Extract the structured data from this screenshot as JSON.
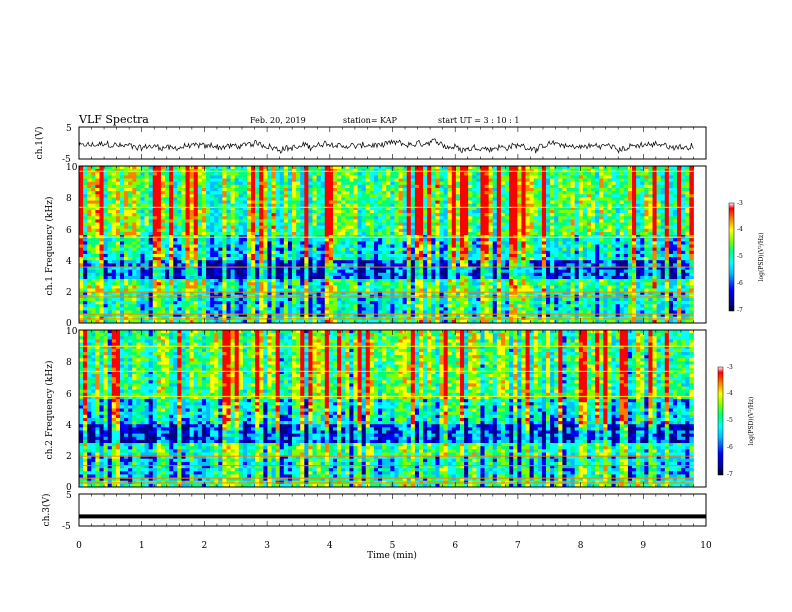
{
  "header": {
    "title": "VLF Spectra",
    "date": "Feb. 20, 2019",
    "station": "station= KAP",
    "start": "start  UT =   3  : 10 : 1"
  },
  "colors": {
    "spectrogram_scale": [
      "#00008b",
      "#0000ff",
      "#00bfff",
      "#00ffff",
      "#00ff80",
      "#80ff00",
      "#ffff00",
      "#ff8000",
      "#ff0000"
    ],
    "waveform": "#000000"
  },
  "chart_data": [
    {
      "type": "line",
      "panel": "ch1-waveform",
      "ylabel": "ch.1(V)",
      "ylim": [
        -5,
        5
      ],
      "yticks": [
        "5",
        "-5"
      ],
      "xlim": [
        0,
        10
      ],
      "description_series": "noisy waveform centred near -1 V, amplitude roughly ±2 V"
    },
    {
      "type": "heatmap",
      "panel": "ch1-spectrogram",
      "ylabel": "ch.1 Frequency (kHz)",
      "ylim": [
        0,
        10
      ],
      "yticks": [
        "10",
        "8",
        "6",
        "4",
        "2",
        "0"
      ],
      "xlim": [
        0,
        10
      ],
      "colorbar": {
        "label": "log(PSD)(V²/Hz)",
        "ticks": [
          "-3",
          "-4",
          "-5",
          "-6",
          "-7"
        ],
        "range": [
          -7,
          -3
        ]
      }
    },
    {
      "type": "heatmap",
      "panel": "ch2-spectrogram",
      "ylabel": "ch.2 Frequency (kHz)",
      "ylim": [
        0,
        10
      ],
      "yticks": [
        "10",
        "8",
        "6",
        "4",
        "2",
        "0"
      ],
      "xlim": [
        0,
        10
      ],
      "colorbar": {
        "label": "log(PSD)(V²/Hz)",
        "ticks": [
          "-3",
          "-4",
          "-5",
          "-6",
          "-7"
        ],
        "range": [
          -7,
          -3
        ]
      }
    },
    {
      "type": "line",
      "panel": "ch3-waveform",
      "ylabel": "ch.3(V)",
      "ylim": [
        -5,
        5
      ],
      "yticks": [
        "5",
        "-5"
      ],
      "xlim": [
        0,
        9.8
      ],
      "x": [
        0,
        9.8
      ],
      "y": [
        -2,
        -2
      ]
    }
  ],
  "xaxis": {
    "label": "Time  (min)",
    "ticks": [
      "0",
      "1",
      "2",
      "3",
      "4",
      "5",
      "6",
      "7",
      "8",
      "9",
      "10"
    ]
  }
}
